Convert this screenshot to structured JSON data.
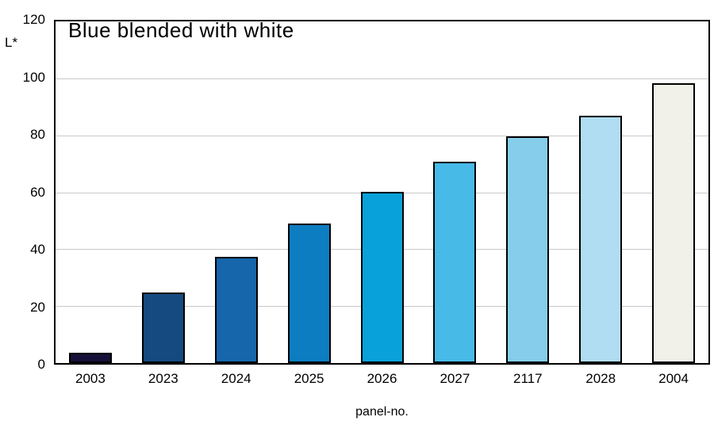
{
  "chart_data": {
    "type": "bar",
    "title": "Blue blended with white",
    "xlabel": "panel-no.",
    "ylabel": "L*",
    "categories": [
      "2003",
      "2023",
      "2024",
      "2025",
      "2026",
      "2027",
      "2117",
      "2028",
      "2004"
    ],
    "values": [
      3.5,
      24.5,
      37,
      48.5,
      59.5,
      70,
      79,
      86,
      97.5
    ],
    "bar_colors": [
      "#151038",
      "#154A80",
      "#1566AA",
      "#0C7DC0",
      "#09A1DA",
      "#47BAE8",
      "#85CDEA",
      "#B0DDF1",
      "#F2F1E9"
    ],
    "bar_border_color": "#000000",
    "ylim": [
      0,
      120
    ],
    "yticks": [
      0,
      20,
      40,
      60,
      80,
      100,
      120
    ],
    "grid": true,
    "gridline_color": "#C9C9C9",
    "frame_color": "#000000",
    "background_color": "#FFFFFF",
    "legend": "none"
  }
}
